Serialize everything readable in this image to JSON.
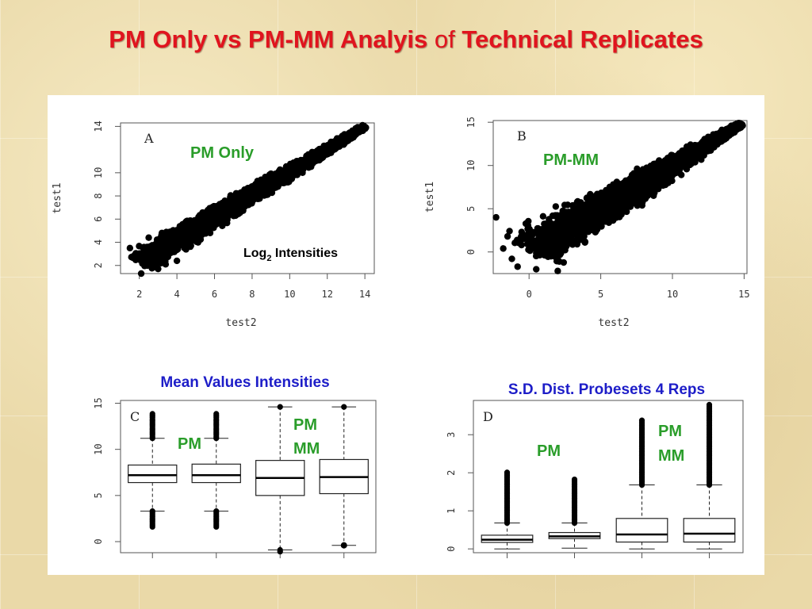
{
  "slide": {
    "title_part1": "PM Only vs PM-MM Analyis ",
    "title_of": "of",
    "title_part2": " Technical Replicates"
  },
  "colors": {
    "title": "#e0141e",
    "annotation_green": "#2a9d2a",
    "annotation_blue": "#1d1dc8",
    "points": "#000000"
  },
  "chart_data": [
    {
      "id": "A",
      "type": "scatter",
      "panel_letter": "A",
      "annotation": "PM Only",
      "note_main": "Log",
      "note_sub": "2",
      "note_tail": " Intensities",
      "xlabel": "test2",
      "ylabel": "test1",
      "xlim": [
        1,
        14.5
      ],
      "ylim": [
        1.3,
        14.3
      ],
      "xticks": [
        2,
        4,
        6,
        8,
        10,
        12,
        14
      ],
      "yticks": [
        2,
        4,
        6,
        8,
        10,
        14
      ],
      "trend": {
        "from": [
          2,
          2.2
        ],
        "to": [
          14,
          14
        ],
        "spread_low": 1.4,
        "spread_high": 0.25
      },
      "outliers": [
        [
          1.5,
          3.5
        ],
        [
          1.8,
          3.0
        ],
        [
          2.2,
          2.6
        ],
        [
          2.5,
          4.4
        ],
        [
          3.0,
          1.7
        ],
        [
          3.4,
          2.1
        ],
        [
          3.2,
          4.8
        ],
        [
          2.1,
          1.3
        ],
        [
          4.0,
          2.4
        ],
        [
          4.5,
          5.8
        ]
      ]
    },
    {
      "id": "B",
      "type": "scatter",
      "panel_letter": "B",
      "annotation": "PM-MM",
      "xlabel": "test2",
      "ylabel": "test1",
      "xlim": [
        -2.5,
        15.2
      ],
      "ylim": [
        -2.5,
        15.2
      ],
      "xticks": [
        0,
        5,
        10,
        15
      ],
      "yticks": [
        0,
        5,
        10,
        15
      ],
      "trend": {
        "from": [
          0,
          0
        ],
        "to": [
          14.8,
          14.8
        ],
        "spread_low": 3.2,
        "spread_high": 0.35
      },
      "outliers": [
        [
          -2.3,
          4.0
        ],
        [
          -1.2,
          -0.8
        ],
        [
          -1.5,
          1.8
        ],
        [
          -0.8,
          -1.7
        ],
        [
          0.5,
          -2.0
        ],
        [
          2,
          -2.2
        ],
        [
          -1.8,
          0.4
        ]
      ]
    },
    {
      "id": "C",
      "type": "box",
      "panel_letter": "C",
      "title": "Mean Values Intensities",
      "group_labels": [
        {
          "text": "PM",
          "line2": ""
        },
        {
          "text": "PM",
          "line2": "MM"
        }
      ],
      "ylim": [
        -1.2,
        15.3
      ],
      "yticks": [
        0,
        5,
        10,
        15
      ],
      "boxes": [
        {
          "q1": 6.4,
          "median": 7.2,
          "q3": 8.3,
          "whisker_low": 3.3,
          "whisker_high": 11.2,
          "out_low": 1.5,
          "out_high": 14.0
        },
        {
          "q1": 6.4,
          "median": 7.2,
          "q3": 8.4,
          "whisker_low": 3.3,
          "whisker_high": 11.2,
          "out_low": 1.5,
          "out_high": 14.0
        },
        {
          "q1": 5.0,
          "median": 6.9,
          "q3": 8.8,
          "whisker_low": -0.9,
          "whisker_high": 14.6,
          "out_low": -1.1,
          "out_high": 14.7
        },
        {
          "q1": 5.2,
          "median": 7.0,
          "q3": 8.9,
          "whisker_low": -0.4,
          "whisker_high": 14.6,
          "out_low": -0.4,
          "out_high": 14.7
        }
      ]
    },
    {
      "id": "D",
      "type": "box",
      "panel_letter": "D",
      "title": "S.D. Dist. Probesets 4 Reps",
      "group_labels": [
        {
          "text": "PM",
          "line2": ""
        },
        {
          "text": "PM",
          "line2": "MM"
        }
      ],
      "ylim": [
        -0.1,
        3.9
      ],
      "yticks": [
        0,
        1,
        2,
        3
      ],
      "boxes": [
        {
          "q1": 0.17,
          "median": 0.24,
          "q3": 0.36,
          "whisker_low": 0.0,
          "whisker_high": 0.68,
          "out_low": 0.68,
          "out_high": 2.05
        },
        {
          "q1": 0.27,
          "median": 0.33,
          "q3": 0.43,
          "whisker_low": 0.02,
          "whisker_high": 0.68,
          "out_low": 0.68,
          "out_high": 1.85
        },
        {
          "q1": 0.18,
          "median": 0.38,
          "q3": 0.8,
          "whisker_low": 0.0,
          "whisker_high": 1.68,
          "out_low": 1.68,
          "out_high": 3.4
        },
        {
          "q1": 0.18,
          "median": 0.4,
          "q3": 0.8,
          "whisker_low": 0.0,
          "whisker_high": 1.68,
          "out_low": 1.68,
          "out_high": 3.8
        }
      ]
    }
  ]
}
